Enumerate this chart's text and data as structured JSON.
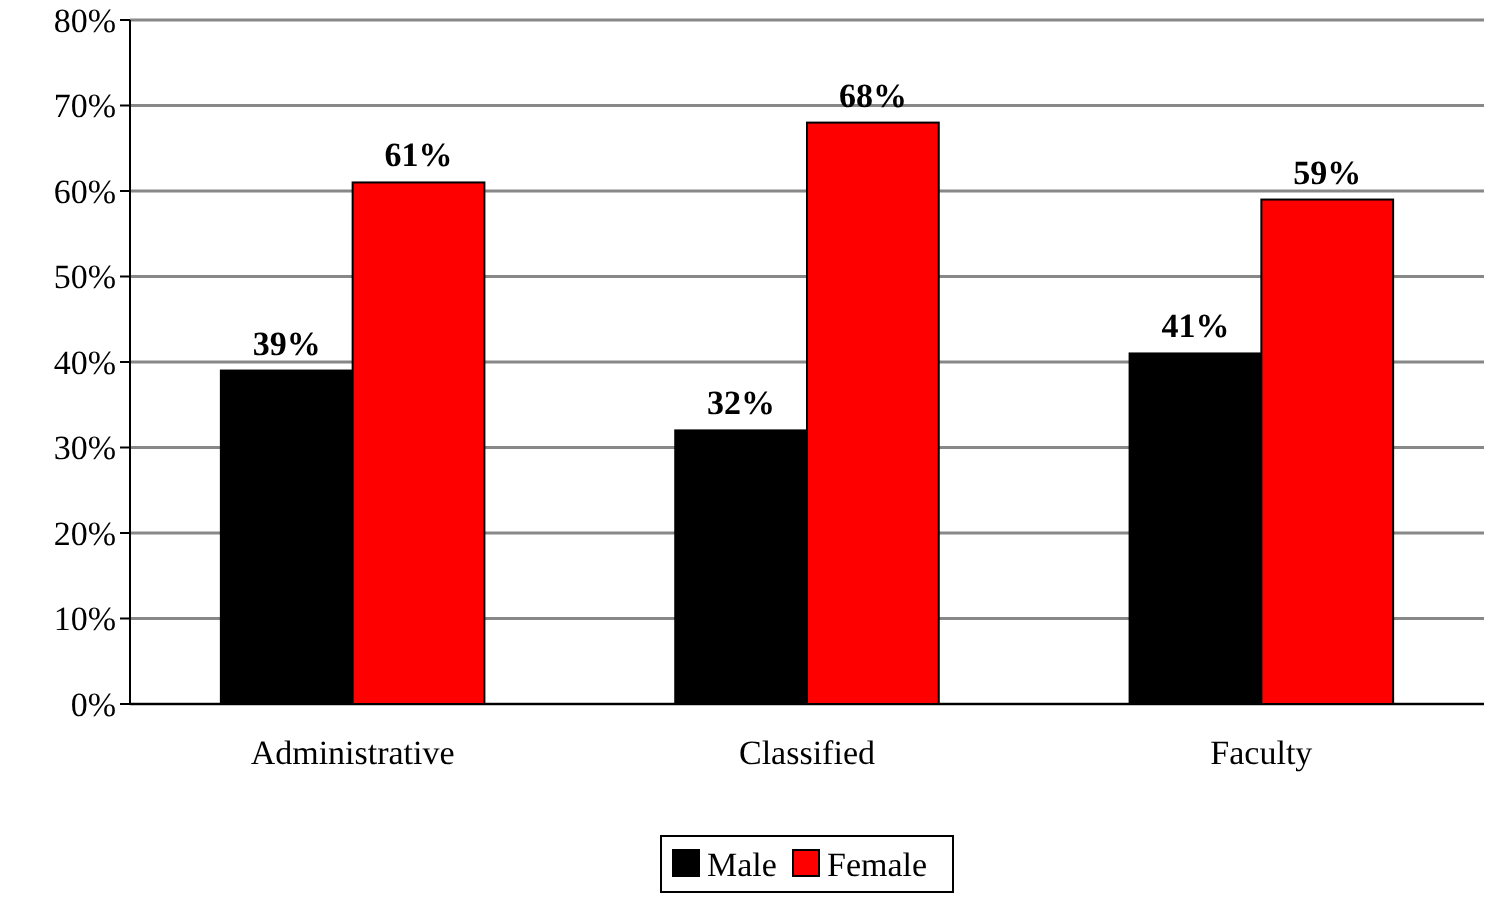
{
  "chart_data": {
    "type": "bar",
    "categories": [
      "Administrative",
      "Classified",
      "Faculty"
    ],
    "series": [
      {
        "name": "Male",
        "color": "#000000",
        "values": [
          39,
          32,
          41
        ],
        "value_labels": [
          "39%",
          "32%",
          "41%"
        ]
      },
      {
        "name": "Female",
        "color": "#ff0000",
        "values": [
          61,
          68,
          59
        ],
        "value_labels": [
          "61%",
          "68%",
          "59%"
        ]
      }
    ],
    "ylim": [
      0,
      80
    ],
    "yticks": [
      {
        "value": 0,
        "label": "0%"
      },
      {
        "value": 10,
        "label": "10%"
      },
      {
        "value": 20,
        "label": "20%"
      },
      {
        "value": 30,
        "label": "30%"
      },
      {
        "value": 40,
        "label": "40%"
      },
      {
        "value": 50,
        "label": "50%"
      },
      {
        "value": 60,
        "label": "60%"
      },
      {
        "value": 70,
        "label": "70%"
      },
      {
        "value": 80,
        "label": "80%"
      }
    ],
    "grid": "y",
    "legend": "bottom"
  }
}
